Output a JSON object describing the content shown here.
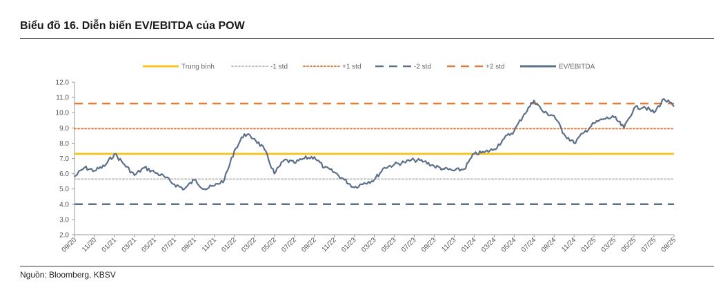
{
  "title": "Biểu đồ 16. Diễn biến EV/EBITDA của POW",
  "source": "Nguồn: Bloomberg, KBSV",
  "colors": {
    "mean": "#F2C526",
    "minus1": "#BFBFBF",
    "plus1": "#E07B39",
    "minus2": "#5B7088",
    "plus2": "#E07B39",
    "series": "#5B7088"
  },
  "chart_data": {
    "type": "line",
    "title": "",
    "xlabel": "",
    "ylabel": "",
    "ylim": [
      2.0,
      12.0
    ],
    "yticks": [
      "2.0",
      "3.0",
      "4.0",
      "5.0",
      "6.0",
      "7.0",
      "8.0",
      "9.0",
      "10.0",
      "11.0",
      "12.0"
    ],
    "xlim": [
      "2020-09",
      "2025-09"
    ],
    "xticks": [
      "09/20",
      "11/20",
      "01/21",
      "03/21",
      "05/21",
      "07/21",
      "09/21",
      "11/21",
      "01/22",
      "03/22",
      "05/22",
      "07/22",
      "09/22",
      "11/22",
      "01/23",
      "03/23",
      "05/23",
      "07/23",
      "09/23",
      "11/23",
      "01/24",
      "03/24",
      "05/24",
      "07/24",
      "09/24",
      "11/24",
      "01/25",
      "03/25",
      "05/25",
      "07/25",
      "09/25"
    ],
    "legend_position": "top",
    "reference_lines": [
      {
        "name": "Trung bình",
        "value": 7.3,
        "style": "solid"
      },
      {
        "name": "-1 std",
        "value": 5.65,
        "style": "dotted"
      },
      {
        "name": "+1 std",
        "value": 8.95,
        "style": "dotted"
      },
      {
        "name": "-2 std",
        "value": 4.0,
        "style": "dashed"
      },
      {
        "name": "+2 std",
        "value": 10.6,
        "style": "dashed"
      }
    ],
    "series": [
      {
        "name": "EV/EBITDA",
        "points": [
          [
            "2020-09",
            5.8
          ],
          [
            "2020-10",
            6.4
          ],
          [
            "2020-11",
            6.2
          ],
          [
            "2020-12",
            6.5
          ],
          [
            "2021-01",
            7.3
          ],
          [
            "2021-02",
            6.6
          ],
          [
            "2021-03",
            5.9
          ],
          [
            "2021-04",
            6.4
          ],
          [
            "2021-05",
            6.1
          ],
          [
            "2021-06",
            5.8
          ],
          [
            "2021-07",
            5.3
          ],
          [
            "2021-08",
            5.0
          ],
          [
            "2021-09",
            5.6
          ],
          [
            "2021-10",
            5.0
          ],
          [
            "2021-11",
            5.2
          ],
          [
            "2021-12",
            5.6
          ],
          [
            "2022-01",
            7.5
          ],
          [
            "2022-02",
            8.6
          ],
          [
            "2022-03",
            8.3
          ],
          [
            "2022-04",
            7.6
          ],
          [
            "2022-05",
            6.0
          ],
          [
            "2022-06",
            6.9
          ],
          [
            "2022-07",
            6.7
          ],
          [
            "2022-08",
            7.0
          ],
          [
            "2022-09",
            7.1
          ],
          [
            "2022-10",
            6.4
          ],
          [
            "2022-11",
            6.1
          ],
          [
            "2022-12",
            5.6
          ],
          [
            "2023-01",
            5.1
          ],
          [
            "2023-02",
            5.4
          ],
          [
            "2023-03",
            5.6
          ],
          [
            "2023-04",
            6.4
          ],
          [
            "2023-05",
            6.6
          ],
          [
            "2023-06",
            6.75
          ],
          [
            "2023-07",
            6.9
          ],
          [
            "2023-08",
            6.8
          ],
          [
            "2023-09",
            6.5
          ],
          [
            "2023-10",
            6.3
          ],
          [
            "2023-11",
            6.2
          ],
          [
            "2023-12",
            6.3
          ],
          [
            "2024-01",
            7.3
          ],
          [
            "2024-02",
            7.4
          ],
          [
            "2024-03",
            7.6
          ],
          [
            "2024-04",
            8.3
          ],
          [
            "2024-05",
            8.8
          ],
          [
            "2024-06",
            9.9
          ],
          [
            "2024-07",
            10.8
          ],
          [
            "2024-08",
            10.0
          ],
          [
            "2024-09",
            9.8
          ],
          [
            "2024-10",
            8.6
          ],
          [
            "2024-11",
            8.0
          ],
          [
            "2024-12",
            8.7
          ],
          [
            "2025-01",
            9.3
          ],
          [
            "2025-02",
            9.6
          ],
          [
            "2025-03",
            9.7
          ],
          [
            "2025-04",
            9.0
          ],
          [
            "2025-05",
            10.3
          ],
          [
            "2025-06",
            10.4
          ],
          [
            "2025-07",
            10.0
          ],
          [
            "2025-08",
            10.9
          ],
          [
            "2025-09",
            10.4
          ]
        ]
      }
    ]
  }
}
